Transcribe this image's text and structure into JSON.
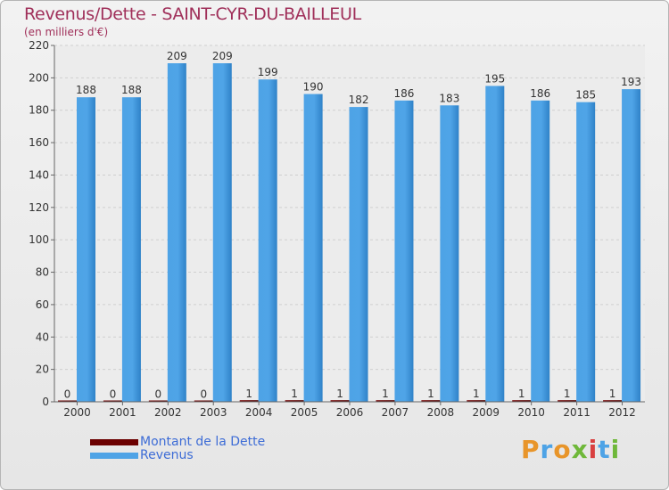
{
  "title": "Revenus/Dette - SAINT-CYR-DU-BAILLEUL",
  "subtitle": "(en milliers d'€)",
  "colors": {
    "dette": "#6b0000",
    "revenus": "#4ea3e6",
    "title": "#a0305a",
    "legend_text": "#3d6cd6"
  },
  "legend": {
    "dette_label": "Montant de la Dette",
    "revenus_label": "Revenus"
  },
  "logo": {
    "text": "Proxiti",
    "letter_colors": [
      "#e8952a",
      "#4ea3e6",
      "#e8952a",
      "#6fb83a",
      "#d94040",
      "#4ea3e6",
      "#6fb83a"
    ]
  },
  "chart_data": {
    "type": "bar",
    "title": "Revenus/Dette - SAINT-CYR-DU-BAILLEUL",
    "subtitle": "(en milliers d'€)",
    "xlabel": "",
    "ylabel": "",
    "ylim": [
      0,
      220
    ],
    "yticks": [
      0,
      20,
      40,
      60,
      80,
      100,
      120,
      140,
      160,
      180,
      200,
      220
    ],
    "grid": true,
    "legend_position": "bottom-left",
    "categories": [
      "2000",
      "2001",
      "2002",
      "2003",
      "2004",
      "2005",
      "2006",
      "2007",
      "2008",
      "2009",
      "2010",
      "2011",
      "2012"
    ],
    "series": [
      {
        "name": "Montant de la Dette",
        "color": "#6b0000",
        "values": [
          0,
          0,
          0,
          0,
          1,
          1,
          1,
          1,
          1,
          1,
          1,
          1,
          1
        ]
      },
      {
        "name": "Revenus",
        "color": "#4ea3e6",
        "values": [
          188,
          188,
          209,
          209,
          199,
          190,
          182,
          186,
          183,
          195,
          186,
          185,
          193
        ]
      }
    ]
  }
}
